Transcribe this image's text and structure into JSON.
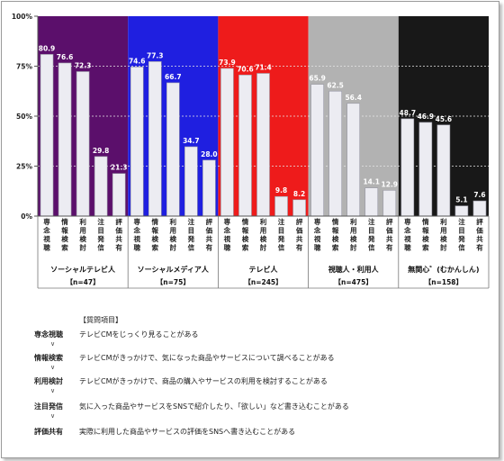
{
  "chart_data": {
    "type": "bar",
    "ylim": [
      0,
      100
    ],
    "yticks": [
      "0%",
      "25%",
      "50%",
      "75%",
      "100%"
    ],
    "bar_categories": [
      "専念視聴",
      "情報検索",
      "利用検討",
      "注目発信",
      "評価共有"
    ],
    "groups": [
      {
        "name": "ソーシャルテレビ人",
        "n": "【n=47】",
        "color": "#5b0f6b",
        "values": [
          80.9,
          76.6,
          72.3,
          29.8,
          21.3
        ]
      },
      {
        "name": "ソーシャルメディア人",
        "n": "【n=75】",
        "color": "#1f1fe0",
        "values": [
          74.6,
          77.3,
          66.7,
          34.7,
          28.0
        ]
      },
      {
        "name": "テレビ人",
        "n": "【n=245】",
        "color": "#ee1b1b",
        "values": [
          73.9,
          70.6,
          71.4,
          9.8,
          8.2
        ]
      },
      {
        "name": "視聴人・利用人",
        "n": "【n=475】",
        "color": "#b2b2b2",
        "values": [
          65.9,
          62.5,
          56.4,
          14.1,
          12.9
        ]
      },
      {
        "name": "無関心゛(むかんしん)",
        "n": "【n=158】",
        "color": "#181818",
        "values": [
          48.7,
          46.9,
          45.6,
          5.1,
          7.6
        ]
      }
    ],
    "value_labels": [
      [
        "80.9",
        "76.6",
        "72.3",
        "29.8",
        "21.3"
      ],
      [
        "74.6",
        "77.3",
        "66.7",
        "34.7",
        "28.0"
      ],
      [
        "73.9",
        "70.6",
        "71.4",
        "9.8",
        "8.2"
      ],
      [
        "65.9",
        "62.5",
        "56.4",
        "14.1",
        "12.9"
      ],
      [
        "48.7",
        "46.9",
        "45.6",
        "5.1",
        "7.6"
      ]
    ]
  },
  "legend": {
    "title": "【質問項目】",
    "items": [
      {
        "term": "専念視聴",
        "desc": "テレビCMをじっくり見ることがある"
      },
      {
        "term": "情報検索",
        "desc": "テレビCMがきっかけで、気になった商品やサービスについて調べることがある"
      },
      {
        "term": "利用検討",
        "desc": "テレビCMがきっかけで、商品の購入やサービスの利用を検討することがある"
      },
      {
        "term": "注目発信",
        "desc": "気に入った商品やサービスをSNSで紹介したり、「欲しい」など書き込むことがある"
      },
      {
        "term": "評価共有",
        "desc": "実際に利用した商品やサービスの評価をSNSへ書き込むことがある"
      }
    ],
    "arrow": "∨"
  }
}
